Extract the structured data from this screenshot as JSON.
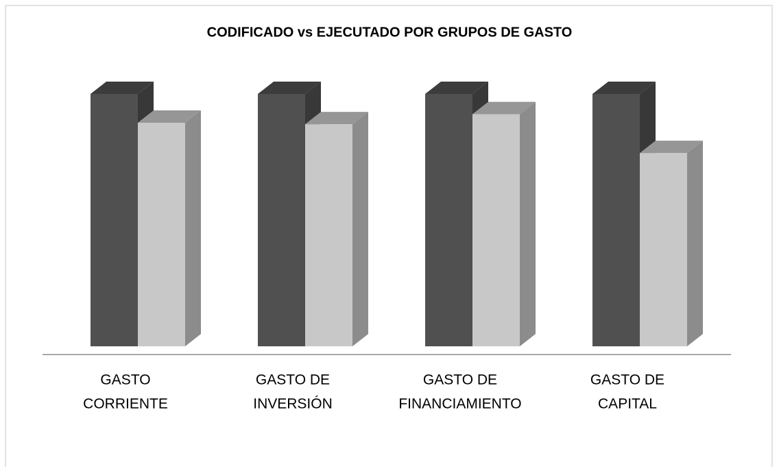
{
  "chart_data": {
    "type": "bar3d",
    "title": "CODIFICADO vs EJECUTADO POR GRUPOS DE GASTO",
    "categories": [
      [
        "GASTO",
        "CORRIENTE"
      ],
      [
        "GASTO DE",
        "INVERSIÓN"
      ],
      [
        "GASTO DE",
        "FINANCIAMIENTO"
      ],
      [
        "GASTO DE",
        "CAPITAL"
      ]
    ],
    "series": [
      {
        "color": "#505050",
        "values": [
          100,
          100,
          100,
          100
        ]
      },
      {
        "color": "#c8c8c8",
        "values": [
          88.6,
          88,
          92,
          76.6
        ]
      }
    ],
    "ylim": [
      0,
      100
    ]
  }
}
